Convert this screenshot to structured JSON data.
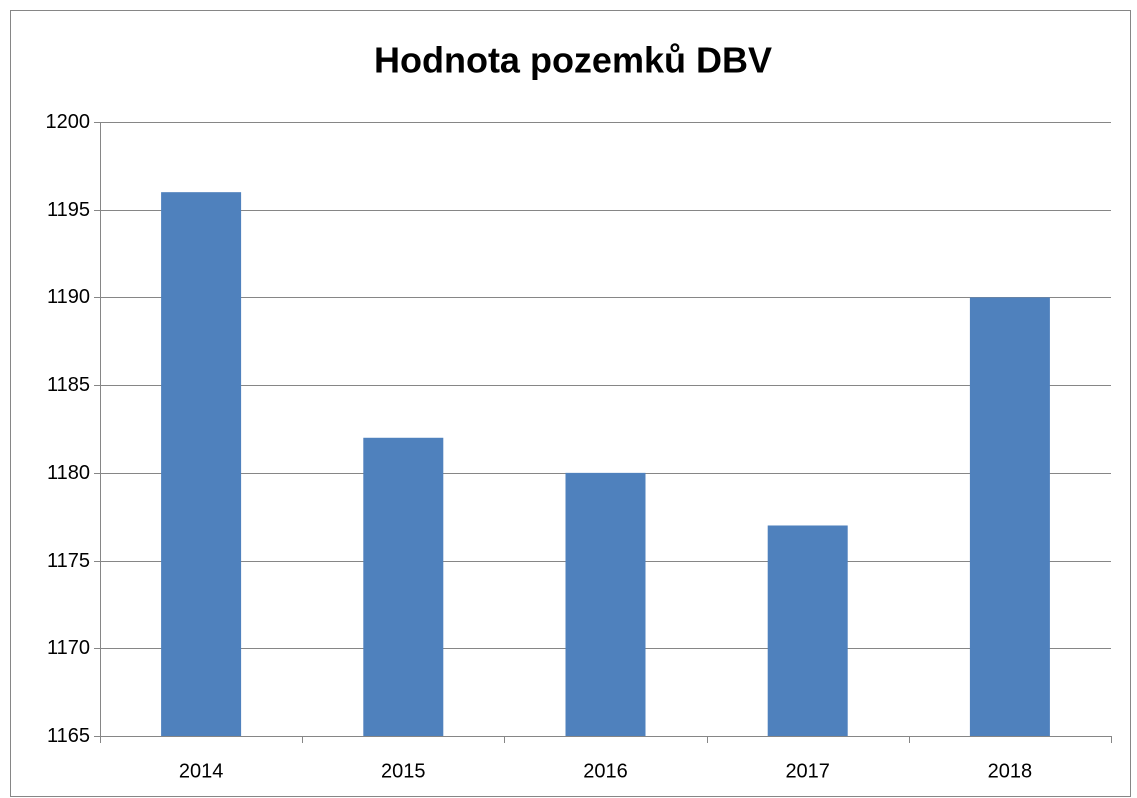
{
  "chart_data": {
    "type": "bar",
    "title": "Hodnota pozemků DBV",
    "categories": [
      "2014",
      "2015",
      "2016",
      "2017",
      "2018"
    ],
    "values": [
      1196,
      1182,
      1180,
      1177,
      1190
    ],
    "color": "#4f81bd",
    "ylim": [
      1165,
      1200
    ],
    "yticks": [
      1165,
      1170,
      1175,
      1180,
      1185,
      1190,
      1195,
      1200
    ],
    "grid": true
  }
}
